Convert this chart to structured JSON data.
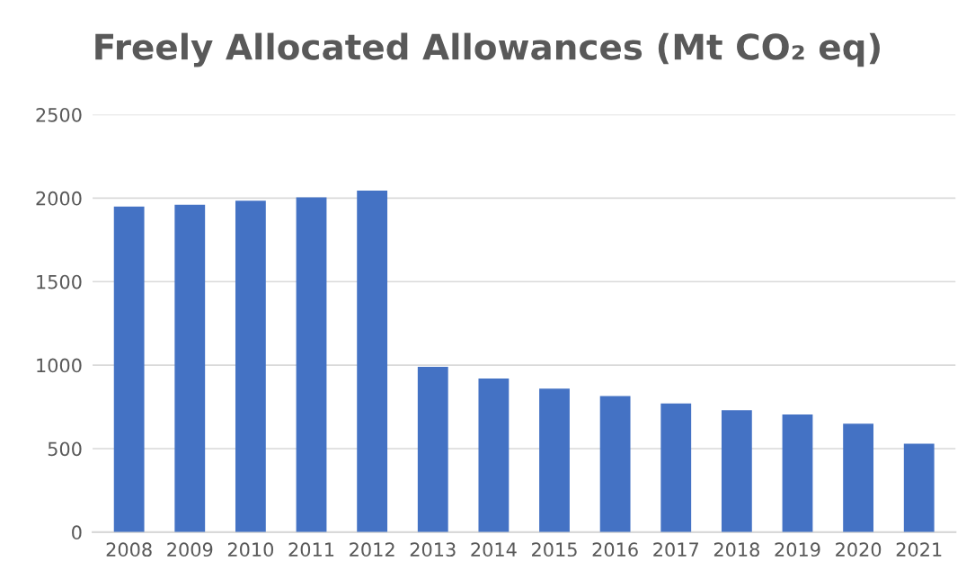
{
  "chart_data": {
    "type": "bar",
    "title": "Freely Allocated Allowances (Mt CO₂ eq)",
    "categories": [
      "2008",
      "2009",
      "2010",
      "2011",
      "2012",
      "2013",
      "2014",
      "2015",
      "2016",
      "2017",
      "2018",
      "2019",
      "2020",
      "2021"
    ],
    "values": [
      1950,
      1960,
      1985,
      2005,
      2045,
      990,
      920,
      860,
      815,
      770,
      730,
      705,
      650,
      530
    ],
    "color": "#4472c4",
    "ylim": [
      0,
      2500
    ],
    "yticks": [
      0,
      500,
      1000,
      1500,
      2000,
      2500
    ],
    "grid": "y",
    "legend": false
  }
}
